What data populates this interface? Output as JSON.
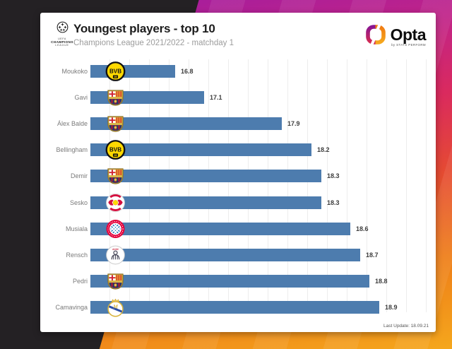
{
  "header": {
    "title": "Youngest players - top 10",
    "subtitle": "Champions League 2021/2022 - matchday 1",
    "competition": {
      "icon": "uefa-champions-league-starball-icon",
      "line1": "UEFA",
      "line2": "CHAMPIONS",
      "line3": "LEAGUE"
    },
    "brand": {
      "icon": "opta-logo-icon",
      "wordmark": "Opta",
      "tagline": "by STATS PERFORM"
    }
  },
  "footer": {
    "last_update": "Last Update: 18.09.21"
  },
  "colors": {
    "bar": "#4d7cae",
    "card_bg": "#ffffff",
    "title": "#1c1c1c",
    "subtitle": "#9c9c9c",
    "player_label": "#7a7a7a",
    "value_label": "#3c3c3c",
    "grid": "#ededed",
    "backdrop_black": "#242124",
    "backdrop_purple": "#9b1ba5",
    "backdrop_magenta": "#c02389",
    "backdrop_red": "#da2a5e",
    "backdrop_orange": "#ee7d18",
    "backdrop_amber": "#f5a71d"
  },
  "chart_data": {
    "type": "bar",
    "orientation": "horizontal",
    "grid": true,
    "legend": false,
    "title": "Youngest players - top 10",
    "subtitle": "Champions League 2021/2022 - matchday 1",
    "xlabel": "",
    "ylabel": "",
    "axis_min": 15.93,
    "axis_max": 19.0,
    "players": [
      {
        "name": "Moukoko",
        "value": 16.8,
        "club": "Borussia Dortmund",
        "crest_icon": "borussia-dortmund-crest-icon"
      },
      {
        "name": "Gavi",
        "value": 17.1,
        "club": "FC Barcelona",
        "crest_icon": "fc-barcelona-crest-icon"
      },
      {
        "name": "Álex Balde",
        "value": 17.9,
        "club": "FC Barcelona",
        "crest_icon": "fc-barcelona-crest-icon"
      },
      {
        "name": "Bellingham",
        "value": 18.2,
        "club": "Borussia Dortmund",
        "crest_icon": "borussia-dortmund-crest-icon"
      },
      {
        "name": "Demir",
        "value": 18.3,
        "club": "FC Barcelona",
        "crest_icon": "fc-barcelona-crest-icon"
      },
      {
        "name": "Sesko",
        "value": 18.3,
        "club": "RB Salzburg",
        "crest_icon": "rb-salzburg-crest-icon"
      },
      {
        "name": "Musiala",
        "value": 18.6,
        "club": "Bayern Munich",
        "crest_icon": "bayern-munich-crest-icon"
      },
      {
        "name": "Rensch",
        "value": 18.7,
        "club": "AFC Ajax",
        "crest_icon": "afc-ajax-crest-icon"
      },
      {
        "name": "Pedri",
        "value": 18.8,
        "club": "FC Barcelona",
        "crest_icon": "fc-barcelona-crest-icon"
      },
      {
        "name": "Camavinga",
        "value": 18.9,
        "club": "Real Madrid",
        "crest_icon": "real-madrid-crest-icon"
      }
    ]
  }
}
